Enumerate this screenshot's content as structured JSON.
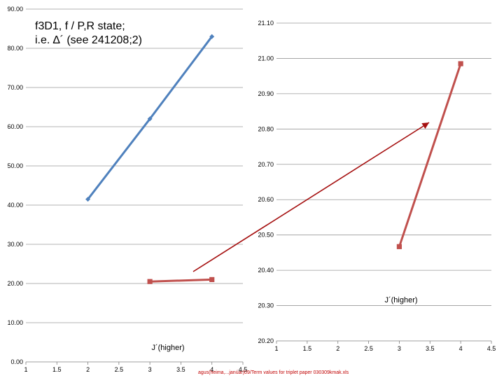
{
  "title_lines": [
    "f3D1, f / P,R state;",
    "i.e. ∆´ (see 241208;2)"
  ],
  "footer": "agus(heima,...janúar)09/Term values for triplet paper 030309kmak.xls",
  "chart_data": [
    {
      "type": "line",
      "x_ticks": [
        "1",
        "1.5",
        "2",
        "2.5",
        "3",
        "3.5",
        "4",
        "4.5"
      ],
      "xlim": [
        1,
        4.5
      ],
      "y_ticks": [
        "0.00",
        "10.00",
        "20.00",
        "30.00",
        "40.00",
        "50.00",
        "60.00",
        "70.00",
        "80.00",
        "90.00"
      ],
      "ylim": [
        0,
        90
      ],
      "xlabel": "J´(higher)",
      "ylabel": "",
      "grid": true,
      "series": [
        {
          "color": "#4f81bd",
          "marker": "diamond",
          "x": [
            2,
            3,
            4
          ],
          "y": [
            41.5,
            62.0,
            83.0
          ]
        },
        {
          "color": "#c0504d",
          "marker": "square",
          "x": [
            3,
            4
          ],
          "y": [
            20.5,
            21.0
          ]
        }
      ]
    },
    {
      "type": "line",
      "x_ticks": [
        "1",
        "1.5",
        "2",
        "2.5",
        "3",
        "3.5",
        "4",
        "4.5"
      ],
      "xlim": [
        1,
        4.5
      ],
      "y_ticks": [
        "20.20",
        "20.30",
        "20.40",
        "20.50",
        "20.60",
        "20.70",
        "20.80",
        "20.90",
        "21.00",
        "21.10"
      ],
      "ylim": [
        20.2,
        21.1
      ],
      "xlabel": "J´(higher)",
      "ylabel": "",
      "grid": true,
      "series": [
        {
          "color": "#c0504d",
          "marker": "square",
          "x": [
            3,
            4
          ],
          "y": [
            20.467,
            20.985
          ]
        }
      ]
    }
  ],
  "arrow": {
    "color": "#a50f0f"
  }
}
